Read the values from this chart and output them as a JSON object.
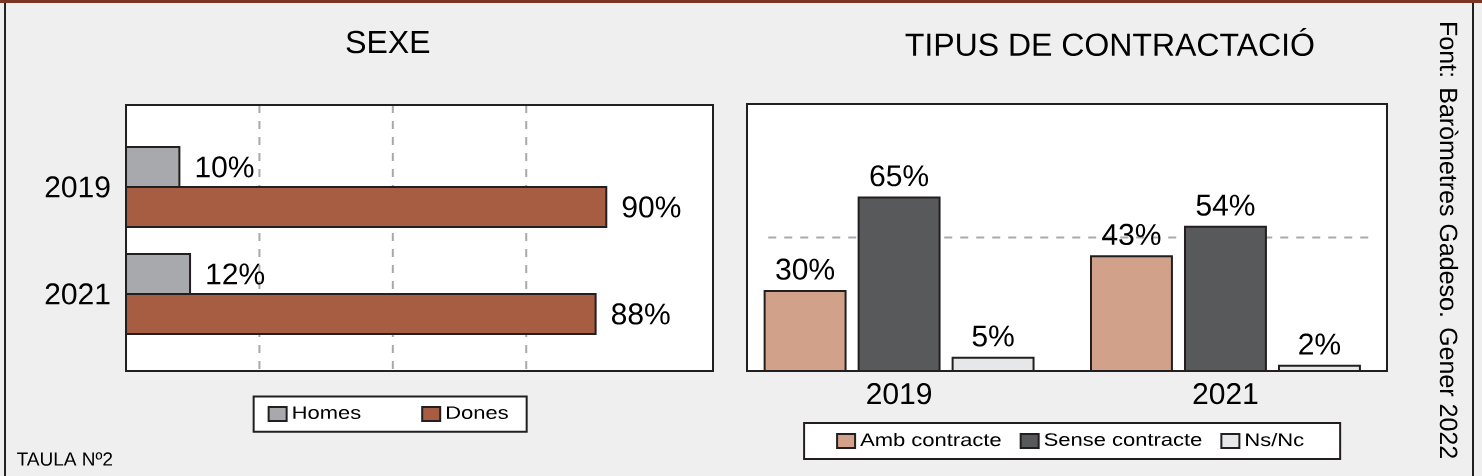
{
  "chart_data": [
    {
      "type": "bar",
      "title": "SEXE",
      "orientation": "horizontal",
      "categories": [
        "2019",
        "2021"
      ],
      "series": [
        {
          "name": "Homes",
          "color": "#a7a9ac",
          "values": [
            10,
            12
          ],
          "value_labels": [
            "10%",
            "12%"
          ]
        },
        {
          "name": "Dones",
          "color": "#a65d41",
          "values": [
            90,
            88
          ],
          "value_labels": [
            "90%",
            "88%"
          ]
        }
      ],
      "xlim": [
        0,
        110
      ],
      "xticks": [
        {
          "value": 25,
          "label": null
        },
        {
          "value": 50,
          "label": null
        },
        {
          "value": 75,
          "label": null
        }
      ],
      "grid": "x",
      "legend": "bottom",
      "tick_labels": "y",
      "annotations": [
        "TAULA Nº2"
      ]
    },
    {
      "type": "bar",
      "title": "TIPUS DE CONTRACTACIÓ",
      "categories": [
        "2019",
        "2021"
      ],
      "series": [
        {
          "name": "Amb contracte",
          "color": "#d2a189",
          "values": [
            30,
            43
          ],
          "value_labels": [
            "30%",
            "43%"
          ]
        },
        {
          "name": "Sense contracte",
          "color": "#58595b",
          "values": [
            65,
            54
          ],
          "value_labels": [
            "65%",
            "54%"
          ]
        },
        {
          "name": "Ns/Nc",
          "color": "#e6e7e8",
          "values": [
            5,
            2
          ],
          "value_labels": [
            "5%",
            "2%"
          ]
        }
      ],
      "ylim": [
        0,
        100
      ],
      "ref_lines": [
        {
          "axis": "y",
          "value": 50,
          "color": "#a7a9ac",
          "line_style": "dashed"
        }
      ],
      "legend": "bottom",
      "tick_labels": "x",
      "annotations": [
        "Font: Baròmetres Gadeso. Gener 2022"
      ]
    }
  ]
}
